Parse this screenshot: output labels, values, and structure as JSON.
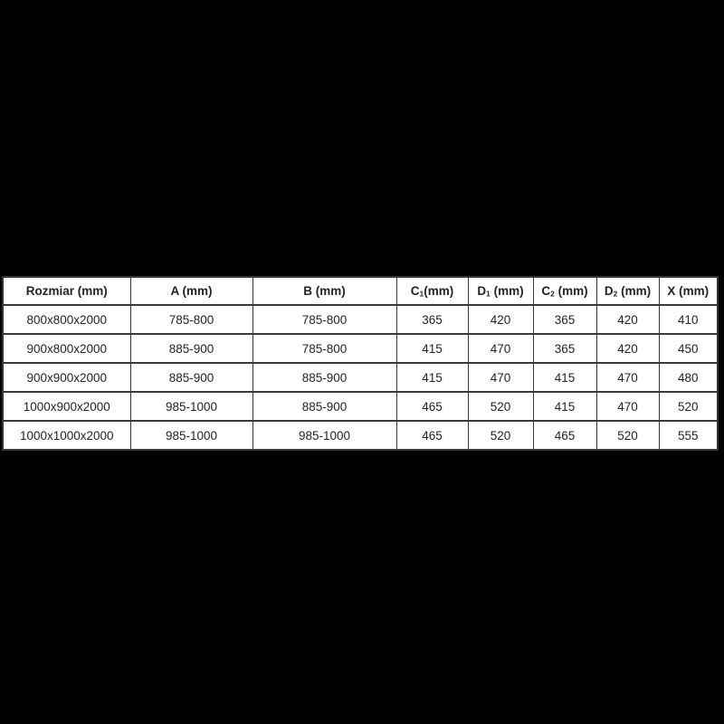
{
  "page": {
    "background_color": "#000000",
    "table_background_color": "#ffffff",
    "grid_color": "#383838",
    "text_color": "#242424"
  },
  "table": {
    "headers": [
      {
        "pre": "Rozmiar (mm)",
        "sub": "",
        "post": ""
      },
      {
        "pre": "A (mm)",
        "sub": "",
        "post": ""
      },
      {
        "pre": "B (mm)",
        "sub": "",
        "post": ""
      },
      {
        "pre": "C",
        "sub": "1",
        "post": "(mm)"
      },
      {
        "pre": "D",
        "sub": "1",
        "post": " (mm)"
      },
      {
        "pre": "C",
        "sub": "2",
        "post": " (mm)"
      },
      {
        "pre": "D",
        "sub": "2",
        "post": " (mm)"
      },
      {
        "pre": "X (mm)",
        "sub": "",
        "post": ""
      }
    ],
    "rows": [
      {
        "cells": [
          "800x800x2000",
          "785-800",
          "785-800",
          "365",
          "420",
          "365",
          "420",
          "410"
        ]
      },
      {
        "cells": [
          "900x800x2000",
          "885-900",
          "785-800",
          "415",
          "470",
          "365",
          "420",
          "450"
        ]
      },
      {
        "cells": [
          "900x900x2000",
          "885-900",
          "885-900",
          "415",
          "470",
          "415",
          "470",
          "480"
        ]
      },
      {
        "cells": [
          "1000x900x2000",
          "985-1000",
          "885-900",
          "465",
          "520",
          "415",
          "470",
          "520"
        ]
      },
      {
        "cells": [
          "1000x1000x2000",
          "985-1000",
          "985-1000",
          "465",
          "520",
          "465",
          "520",
          "555"
        ]
      }
    ]
  },
  "chart_data": {
    "type": "table",
    "title": "",
    "columns": [
      "Rozmiar (mm)",
      "A (mm)",
      "B (mm)",
      "C₁(mm)",
      "D₁ (mm)",
      "C₂ (mm)",
      "D₂ (mm)",
      "X (mm)"
    ],
    "rows": [
      [
        "800x800x2000",
        "785-800",
        "785-800",
        365,
        420,
        365,
        420,
        410
      ],
      [
        "900x800x2000",
        "885-900",
        "785-800",
        415,
        470,
        365,
        420,
        450
      ],
      [
        "900x900x2000",
        "885-900",
        "885-900",
        415,
        470,
        415,
        470,
        480
      ],
      [
        "1000x900x2000",
        "985-1000",
        "885-900",
        465,
        520,
        415,
        470,
        520
      ],
      [
        "1000x1000x2000",
        "985-1000",
        "985-1000",
        465,
        520,
        465,
        520,
        555
      ]
    ]
  }
}
